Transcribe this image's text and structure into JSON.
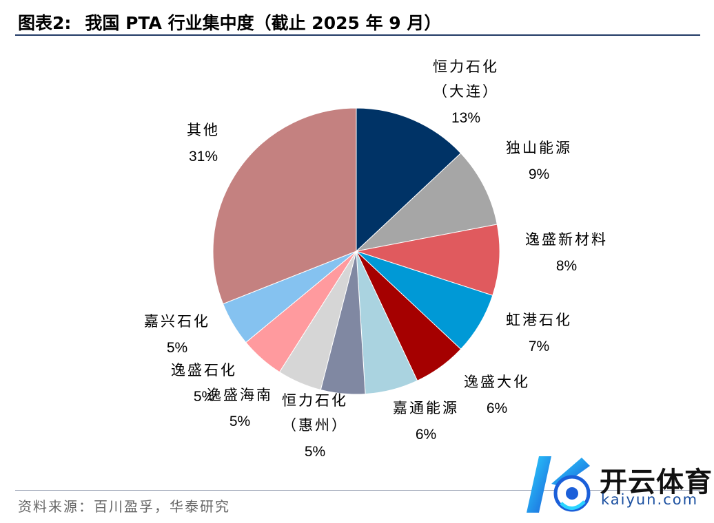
{
  "header": {
    "label_no": "图表2:",
    "title": "我国 PTA 行业集中度（截止 2025 年 9 月）"
  },
  "source": "资料来源：百川盈孚，华泰研究",
  "watermark": {
    "brand": "开云体育",
    "domain": "kaiyun.com"
  },
  "chart_data": {
    "type": "pie",
    "title": "我国 PTA 行业集中度（截止 2025 年 9 月）",
    "start": "12 o'clock, clockwise",
    "slices": [
      {
        "label": [
          "恒力石化",
          "（大连）"
        ],
        "value": 13,
        "pct": "13%",
        "color": "#003366"
      },
      {
        "label": [
          "独山能源"
        ],
        "value": 9,
        "pct": "9%",
        "color": "#a6a6a6"
      },
      {
        "label": [
          "逸盛新材料"
        ],
        "value": 8,
        "pct": "8%",
        "color": "#e05a5e"
      },
      {
        "label": [
          "虹港石化"
        ],
        "value": 7,
        "pct": "7%",
        "color": "#0099d6"
      },
      {
        "label": [
          "逸盛大化"
        ],
        "value": 6,
        "pct": "6%",
        "color": "#a50000"
      },
      {
        "label": [
          "嘉通能源"
        ],
        "value": 6,
        "pct": "6%",
        "color": "#aad3e0"
      },
      {
        "label": [
          "恒力石化",
          "（惠州）"
        ],
        "value": 5,
        "pct": "5%",
        "color": "#8088a2"
      },
      {
        "label": [
          "逸盛海南"
        ],
        "value": 5,
        "pct": "5%",
        "color": "#d6d6d6"
      },
      {
        "label": [
          "逸盛石化"
        ],
        "value": 5,
        "pct": "5%",
        "color": "#ff9a9e"
      },
      {
        "label": [
          "嘉兴石化"
        ],
        "value": 5,
        "pct": "5%",
        "color": "#85c2f0"
      },
      {
        "label": [
          "其他"
        ],
        "value": 31,
        "pct": "31%",
        "color": "#c48180"
      }
    ]
  }
}
